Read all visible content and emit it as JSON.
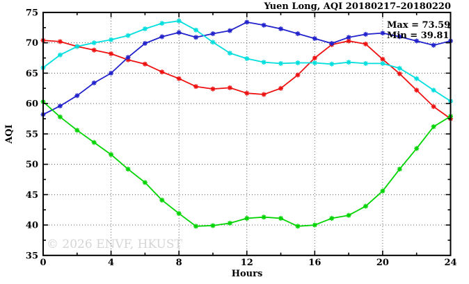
{
  "page": {
    "background_color": "#ffffff"
  },
  "chart_data": {
    "type": "line",
    "title": "Yuen Long, AQI 20180217–20180220",
    "xlabel": "Hours",
    "ylabel": "AQI",
    "xlim": [
      0,
      24
    ],
    "ylim": [
      35,
      75
    ],
    "xticks": [
      0,
      4,
      8,
      12,
      16,
      20,
      24
    ],
    "yticks": [
      35,
      40,
      45,
      50,
      55,
      60,
      65,
      70,
      75
    ],
    "minor_xtick_step": 2,
    "minor_ytick_step": 2.5,
    "grid": "dotted gridlines at major ticks",
    "legend_position": "none",
    "marker_style": "asterisk",
    "annotations": {
      "max_label": "Max = 73.59",
      "min_label": "Min = 39.81"
    },
    "watermark": "© 2026 ENVF, HKUST",
    "x": [
      0,
      1,
      2,
      3,
      4,
      5,
      6,
      7,
      8,
      9,
      10,
      11,
      12,
      13,
      14,
      15,
      16,
      17,
      18,
      19,
      20,
      21,
      22,
      23,
      24
    ],
    "series": [
      {
        "name": "red",
        "color": "#ee1111",
        "values": [
          70.4,
          70.2,
          69.4,
          68.8,
          68.2,
          67.2,
          66.5,
          65.2,
          64.1,
          62.8,
          62.4,
          62.6,
          61.7,
          61.5,
          62.5,
          64.7,
          67.5,
          69.7,
          70.3,
          69.8,
          67.3,
          64.9,
          62.2,
          59.5,
          57.5
        ]
      },
      {
        "name": "blue",
        "color": "#2222cc",
        "values": [
          58.2,
          59.6,
          61.3,
          63.4,
          65.0,
          67.6,
          69.9,
          71.0,
          71.7,
          70.9,
          71.5,
          72.0,
          73.4,
          72.9,
          72.3,
          71.5,
          70.7,
          69.9,
          70.9,
          71.4,
          71.6,
          71.0,
          70.3,
          69.6,
          70.3
        ]
      },
      {
        "name": "cyan",
        "color": "#00dede",
        "values": [
          65.9,
          68.0,
          69.4,
          70.0,
          70.5,
          71.2,
          72.3,
          73.2,
          73.6,
          72.1,
          70.1,
          68.3,
          67.4,
          66.8,
          66.6,
          66.7,
          66.7,
          66.5,
          66.8,
          66.6,
          66.6,
          65.8,
          64.1,
          62.2,
          60.4
        ]
      },
      {
        "name": "green",
        "color": "#00d400",
        "values": [
          60.3,
          57.8,
          55.6,
          53.6,
          51.6,
          49.2,
          47.0,
          44.1,
          41.9,
          39.8,
          39.9,
          40.3,
          41.1,
          41.3,
          41.1,
          39.8,
          40.0,
          41.1,
          41.6,
          43.1,
          45.6,
          49.2,
          52.6,
          56.2,
          57.9
        ]
      }
    ]
  }
}
